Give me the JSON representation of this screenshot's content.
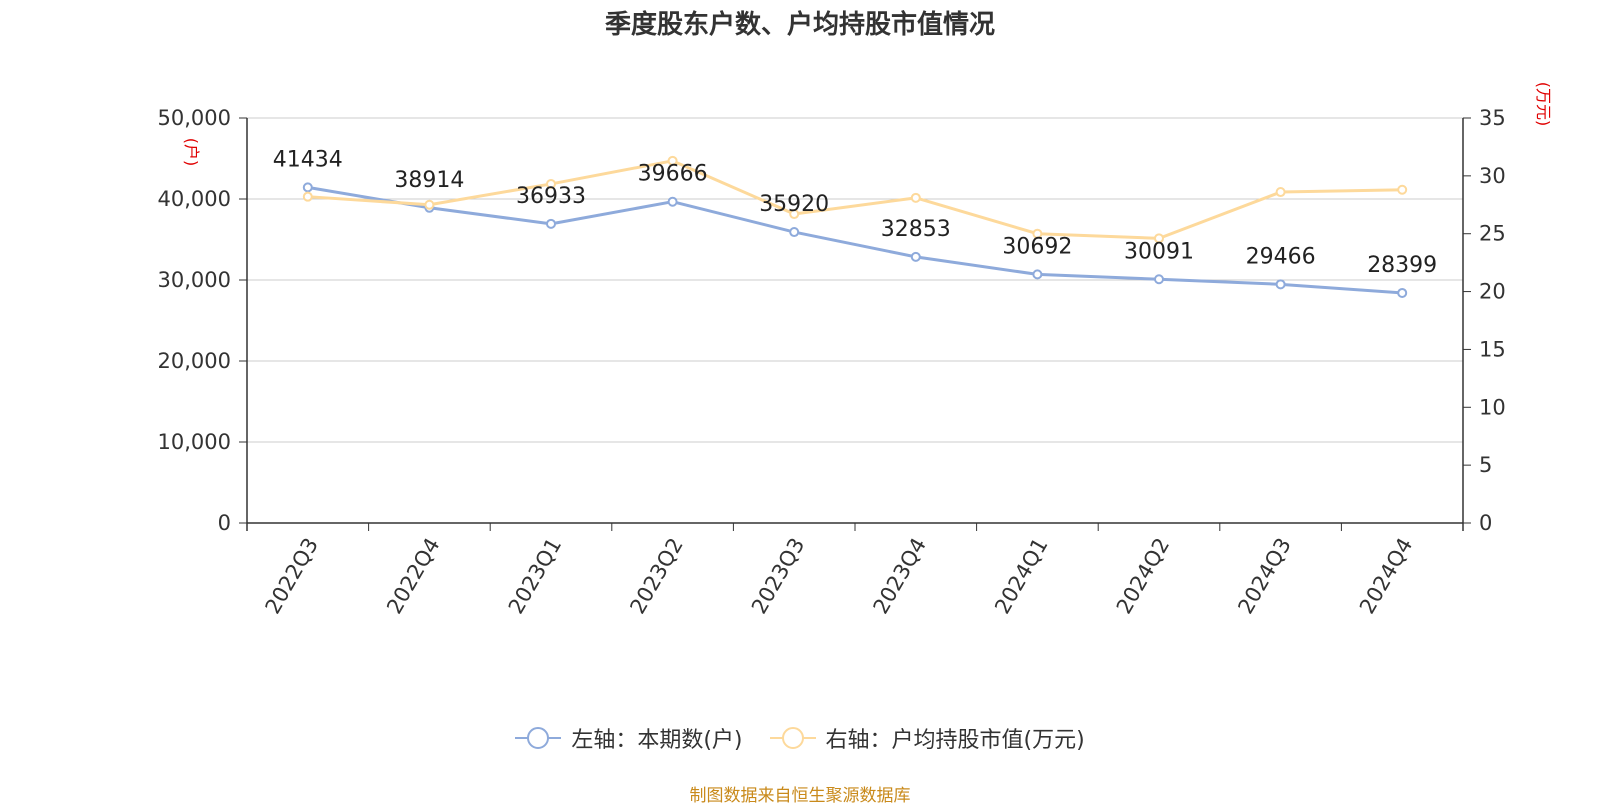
{
  "chart_data": {
    "type": "line",
    "title": "季度股东户数、户均持股市值情况",
    "categories": [
      "2022Q3",
      "2022Q4",
      "2023Q1",
      "2023Q2",
      "2023Q3",
      "2023Q4",
      "2024Q1",
      "2024Q2",
      "2024Q3",
      "2024Q4"
    ],
    "y_left": {
      "unit": "(户)",
      "min": 0,
      "max": 50000,
      "ticks": [
        "0",
        "10,000",
        "20,000",
        "30,000",
        "40,000",
        "50,000"
      ]
    },
    "y_right": {
      "unit": "(万元)",
      "min": 0,
      "max": 35,
      "ticks": [
        "0",
        "5",
        "10",
        "15",
        "20",
        "25",
        "30",
        "35"
      ]
    },
    "grid": true,
    "legend_position": "bottom",
    "series": [
      {
        "name": "左轴：本期数(户)",
        "axis": "left",
        "color": "#8eaadb",
        "values": [
          41434,
          38914,
          36933,
          39666,
          35920,
          32853,
          30692,
          30091,
          29466,
          28399
        ],
        "labels": [
          "41434",
          "38914",
          "36933",
          "39666",
          "35920",
          "32853",
          "30692",
          "30091",
          "29466",
          "28399"
        ]
      },
      {
        "name": "右轴：户均持股市值(万元)",
        "axis": "right",
        "color": "#fdd99b",
        "values": [
          28.2,
          27.5,
          29.3,
          31.3,
          26.7,
          28.1,
          25.0,
          24.6,
          28.6,
          28.8
        ]
      }
    ]
  },
  "source": "制图数据来自恒生聚源数据库"
}
